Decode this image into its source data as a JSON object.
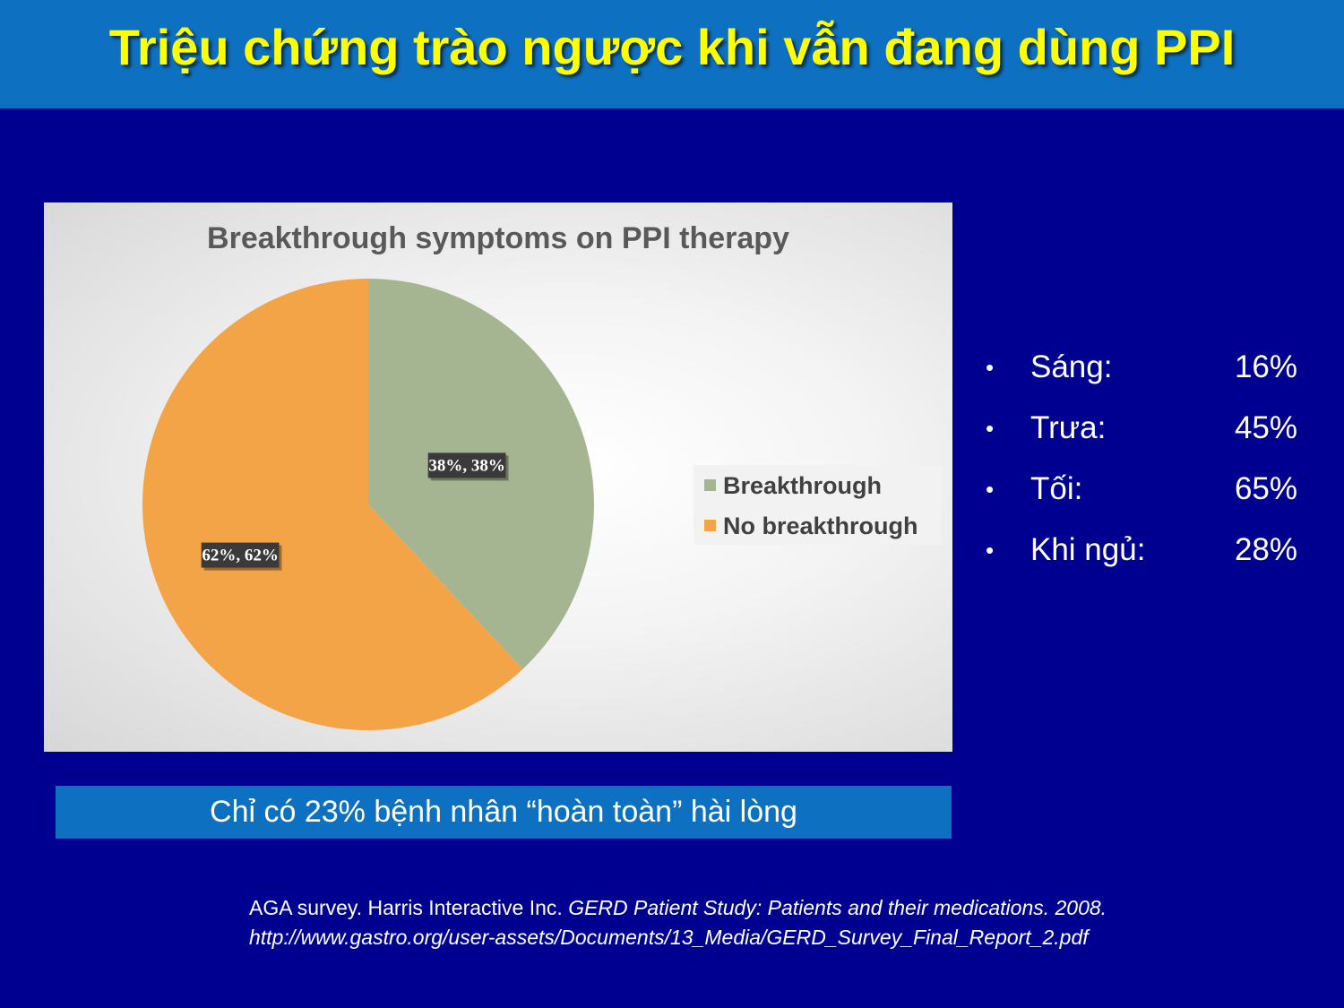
{
  "slide": {
    "title": "Triệu chứng trào ngược khi vẫn đang dùng PPI",
    "bullets": [
      {
        "label": "Sáng:",
        "value": "16%"
      },
      {
        "label": "Trưa:",
        "value": "45%"
      },
      {
        "label": "Tối:",
        "value": "65%"
      },
      {
        "label": "Khi ngủ:",
        "value": "28%"
      }
    ],
    "bullet_glyph": "•",
    "banner": "Chỉ có 23% bệnh nhân “hoàn toàn” hài lòng",
    "citation": {
      "line1_plain": "AGA survey. Harris Interactive Inc. ",
      "line1_italic": "GERD Patient Study: Patients and their medications. 2008.",
      "line2": "http://www.gastro.org/user-assets/Documents/13_Media/GERD_Survey_Final_Report_2.pdf"
    },
    "colors": {
      "background": "#000090",
      "title_bar": "#0e70c0",
      "title_text": "#ffff00"
    }
  },
  "chart_data": {
    "type": "pie",
    "title": "Breakthrough symptoms on PPI therapy",
    "categories": [
      "Breakthrough",
      "No breakthrough"
    ],
    "values": [
      38,
      62
    ],
    "data_labels": [
      "38%, 38%",
      "62%, 62%"
    ],
    "colors": [
      "#a5b592",
      "#f3a447"
    ],
    "legend_position": "right"
  }
}
